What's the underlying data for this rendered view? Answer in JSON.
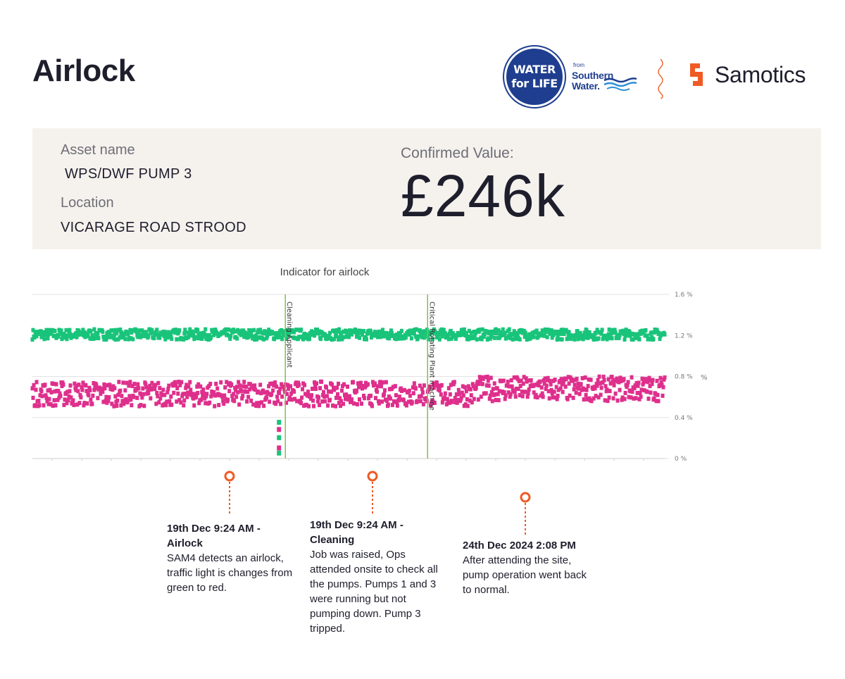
{
  "page": {
    "title": "Airlock"
  },
  "logos": {
    "wfl_line1": "WATER",
    "wfl_line2": "for LIFE",
    "sw_from": "from",
    "sw_line1": "Southern",
    "sw_line2": "Water.",
    "samotics": "Samotics",
    "colors": {
      "wfl_blue": "#1f3e8f",
      "samotics_orange": "#f05a24"
    }
  },
  "asset": {
    "name_label": "Asset name",
    "name_value": "WPS/DWF PUMP 3",
    "location_label": "Location",
    "location_value": "VICARAGE ROAD STROOD",
    "confirmed_label": "Confirmed Value:",
    "confirmed_value": "£246k"
  },
  "chart_data": {
    "type": "scatter",
    "title": "Indicator for airlock",
    "ylabel": "%",
    "ylim": [
      0,
      1.6
    ],
    "yticks": [
      1.6,
      1.2,
      0.8,
      0.4,
      0
    ],
    "ytick_labels": [
      "1.6 %",
      "1.2 %",
      "0.8 %",
      "0.4 %",
      "0 %"
    ],
    "grid": true,
    "series": [
      {
        "color": "#19c47a",
        "level": 1.21,
        "spread": 0.05
      },
      {
        "color": "#de2f8c",
        "level": 0.63,
        "spread": 0.12,
        "late_level": 0.68
      }
    ],
    "markers": [
      {
        "position": 0.4,
        "color": "#7cc24a",
        "label": "Cleaning Applicant"
      },
      {
        "position": 0.625,
        "color": "#7cc24a",
        "label": "Critical Rotating Plant machine"
      }
    ]
  },
  "events": [
    {
      "title": "19th Dec 9:24 AM - Airlock",
      "desc": "SAM4 detects an airlock, traffic light is changes from green to red."
    },
    {
      "title": "19th Dec 9:24 AM - Cleaning",
      "desc": "Job was raised, Ops attended onsite to check all the pumps. Pumps 1 and 3 were running but not pumping down. Pump 3 tripped."
    },
    {
      "title": "24th Dec 2024 2:08 PM",
      "desc": "After attending the site, pump operation went back to normal."
    }
  ]
}
